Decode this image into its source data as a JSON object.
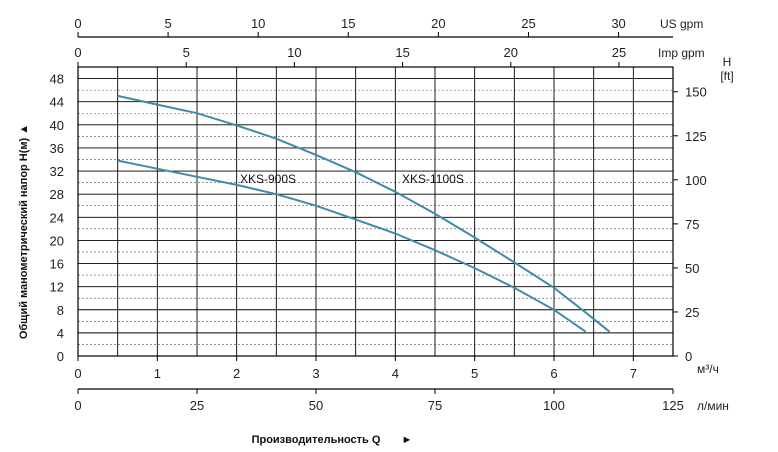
{
  "chart_data": {
    "type": "line",
    "y_axis_left": {
      "label": "Общий манометрический напор H(м)",
      "ticks": [
        "0",
        "4",
        "8",
        "12",
        "16",
        "20",
        "24",
        "28",
        "32",
        "36",
        "40",
        "44",
        "48"
      ],
      "range": [
        0,
        50
      ]
    },
    "y_axis_right": {
      "unit": "H [ft]",
      "ticks": [
        "0",
        "25",
        "50",
        "75",
        "100",
        "125",
        "150"
      ]
    },
    "x_axis_m3h": {
      "unit": "м³/ч",
      "ticks": [
        "0",
        "1",
        "2",
        "3",
        "4",
        "5",
        "6",
        "7"
      ],
      "range": [
        0,
        7.5
      ]
    },
    "x_axis_lmin": {
      "unit": "л/мин",
      "ticks": [
        "0",
        "25",
        "50",
        "75",
        "100",
        "125"
      ]
    },
    "x_axis_us_gpm": {
      "unit": "US gpm",
      "ticks": [
        "0",
        "5",
        "10",
        "15",
        "20",
        "25",
        "30"
      ]
    },
    "x_axis_imp_gpm": {
      "unit": "Imp gpm",
      "ticks": [
        "0",
        "5",
        "10",
        "15",
        "20",
        "25"
      ]
    },
    "xlabel": "Производительность Q",
    "series": [
      {
        "name": "XKS-900S",
        "points": [
          [
            0.5,
            33.8
          ],
          [
            1.0,
            32.4
          ],
          [
            1.5,
            31.0
          ],
          [
            2.0,
            29.6
          ],
          [
            2.5,
            28.0
          ],
          [
            3.0,
            26.0
          ],
          [
            3.5,
            23.6
          ],
          [
            4.0,
            21.2
          ],
          [
            4.5,
            18.3
          ],
          [
            5.0,
            15.2
          ],
          [
            5.5,
            11.8
          ],
          [
            6.0,
            8.0
          ],
          [
            6.4,
            4.2
          ]
        ]
      },
      {
        "name": "XKS-1100S",
        "points": [
          [
            0.5,
            45.0
          ],
          [
            1.0,
            43.5
          ],
          [
            1.5,
            42.0
          ],
          [
            2.0,
            39.9
          ],
          [
            2.5,
            37.6
          ],
          [
            3.0,
            34.8
          ],
          [
            3.5,
            31.8
          ],
          [
            4.0,
            28.4
          ],
          [
            4.5,
            24.6
          ],
          [
            5.0,
            20.5
          ],
          [
            5.5,
            16.2
          ],
          [
            6.0,
            11.8
          ],
          [
            6.4,
            7.5
          ],
          [
            6.7,
            4.2
          ]
        ]
      }
    ]
  }
}
